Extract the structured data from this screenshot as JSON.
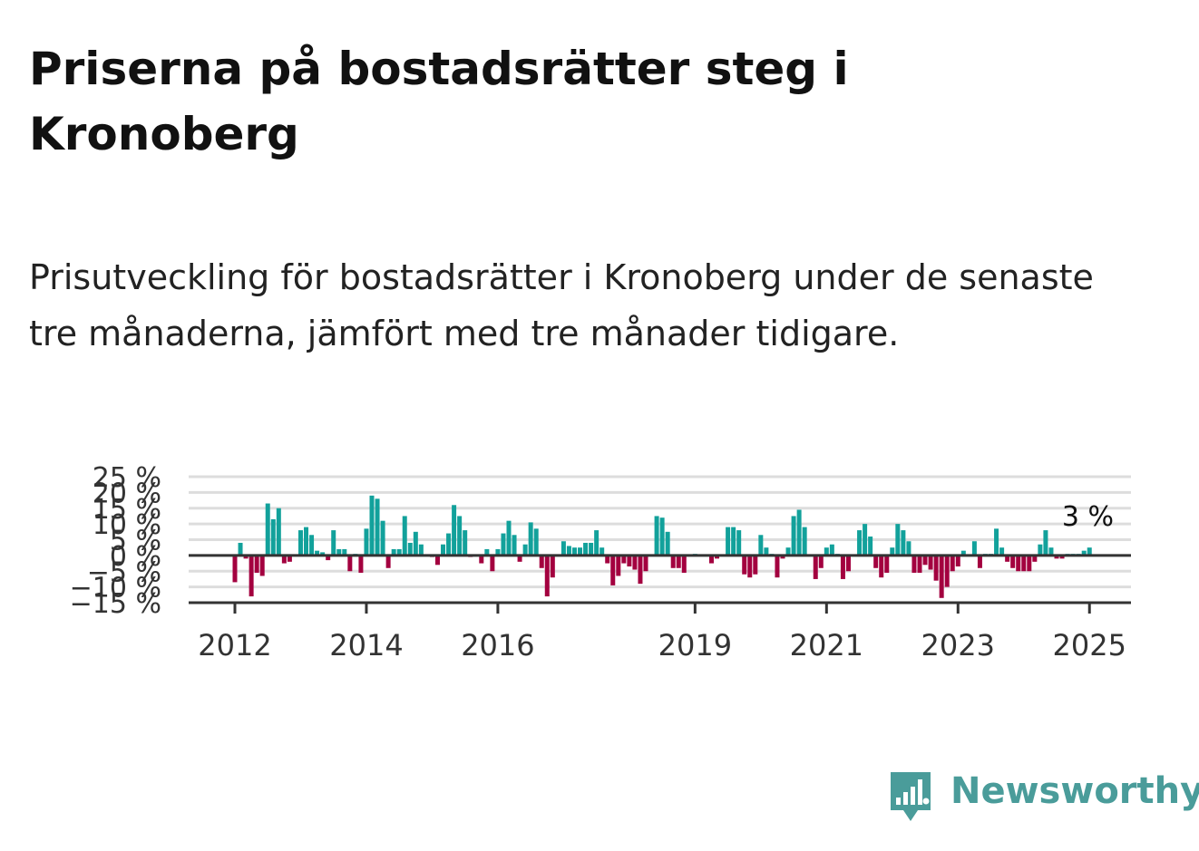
{
  "title": "Priserna på bostadsrätter steg i Kronoberg",
  "subtitle": "Prisutveckling för bostadsrätter i Kronoberg under de senaste tre månaderna, jämfört med tre månader tidigare.",
  "brand": {
    "name": "Newsworthy",
    "color": "#4a9c9a"
  },
  "colors": {
    "positive": "#12a19b",
    "negative": "#a3003f",
    "grid": "#dddddd",
    "axis": "#333333"
  },
  "chart_data": {
    "type": "bar",
    "title": "",
    "xlabel": "",
    "ylabel": "",
    "ylim": [
      -15,
      25
    ],
    "y_ticks": [
      -15,
      -10,
      -5,
      0,
      5,
      10,
      15,
      20,
      25
    ],
    "y_tick_labels": [
      "−15 %",
      "−10 %",
      "−5 %",
      "0 %",
      "5 %",
      "10 %",
      "15 %",
      "20 %",
      "25 %"
    ],
    "x_tick_labels": [
      "2012",
      "2014",
      "2016",
      "2019",
      "2021",
      "2023",
      "2025"
    ],
    "x_tick_dates": [
      "2012-01",
      "2014-01",
      "2016-01",
      "2019-01",
      "2021-01",
      "2023-01",
      "2025-01"
    ],
    "grid": true,
    "last_value_label": "3 %",
    "series": [
      {
        "dates": [
          "2012-01",
          "2012-02",
          "2012-03",
          "2012-04",
          "2012-05",
          "2012-06",
          "2012-07",
          "2012-08",
          "2012-09",
          "2012-10",
          "2012-11",
          "2012-12",
          "2013-01",
          "2013-02",
          "2013-03",
          "2013-04",
          "2013-05",
          "2013-06",
          "2013-07",
          "2013-08",
          "2013-09",
          "2013-10",
          "2013-11",
          "2013-12",
          "2014-01",
          "2014-02",
          "2014-03",
          "2014-04",
          "2014-05",
          "2014-06",
          "2014-07",
          "2014-08",
          "2014-09",
          "2014-10",
          "2014-11",
          "2014-12",
          "2015-01",
          "2015-02",
          "2015-03",
          "2015-04",
          "2015-05",
          "2015-06",
          "2015-07",
          "2015-08",
          "2015-09",
          "2015-10",
          "2015-11",
          "2015-12",
          "2016-01",
          "2016-02",
          "2016-03",
          "2016-04",
          "2016-05",
          "2016-06",
          "2016-07",
          "2016-08",
          "2016-09",
          "2016-10",
          "2016-11",
          "2016-12",
          "2017-01",
          "2017-02",
          "2017-03",
          "2017-04",
          "2017-05",
          "2017-06",
          "2017-07",
          "2017-08",
          "2017-09",
          "2017-10",
          "2017-11",
          "2017-12",
          "2018-01",
          "2018-02",
          "2018-03",
          "2018-04",
          "2018-05",
          "2018-06",
          "2018-07",
          "2018-08",
          "2018-09",
          "2018-10",
          "2018-11",
          "2018-12",
          "2019-01",
          "2019-02",
          "2019-03",
          "2019-04",
          "2019-05",
          "2019-06",
          "2019-07",
          "2019-08",
          "2019-09",
          "2019-10",
          "2019-11",
          "2019-12",
          "2020-01",
          "2020-02",
          "2020-03",
          "2020-04",
          "2020-05",
          "2020-06",
          "2020-07",
          "2020-08",
          "2020-09",
          "2020-10",
          "2020-11",
          "2020-12",
          "2021-01",
          "2021-02",
          "2021-03",
          "2021-04",
          "2021-05",
          "2021-06",
          "2021-07",
          "2021-08",
          "2021-09",
          "2021-10",
          "2021-11",
          "2021-12",
          "2022-01",
          "2022-02",
          "2022-03",
          "2022-04",
          "2022-05",
          "2022-06",
          "2022-07",
          "2022-08",
          "2022-09",
          "2022-10",
          "2022-11",
          "2022-12",
          "2023-01",
          "2023-02",
          "2023-03",
          "2023-04",
          "2023-05",
          "2023-06",
          "2023-07",
          "2023-08",
          "2023-09",
          "2023-10",
          "2023-11",
          "2023-12",
          "2024-01",
          "2024-02",
          "2024-03",
          "2024-04",
          "2024-05",
          "2024-06",
          "2024-07",
          "2024-08",
          "2024-09",
          "2024-10",
          "2024-11",
          "2024-12",
          "2025-01"
        ],
        "values": [
          -8.5,
          4,
          -1,
          -13,
          -5.5,
          -6.5,
          16.5,
          11.5,
          15,
          -2.5,
          -2,
          0,
          8,
          9,
          6.5,
          1.5,
          1,
          -1.5,
          8,
          2,
          2,
          -5,
          0.5,
          -5.5,
          8.5,
          19,
          18,
          11,
          -4,
          2,
          2,
          12.5,
          4,
          7.5,
          3.5,
          0,
          -0.5,
          -3,
          3.5,
          7,
          16,
          12.5,
          8,
          -0.5,
          0,
          -2.5,
          2,
          -5,
          2,
          7,
          11,
          6.5,
          -2,
          3.5,
          10.5,
          8.5,
          -4,
          -13,
          -7,
          0,
          4.5,
          3,
          2.5,
          2.5,
          4,
          4,
          8,
          2.5,
          -2.5,
          -9.5,
          -6.5,
          -2.5,
          -3.5,
          -4.5,
          -9,
          -5,
          0,
          12.5,
          12,
          7.5,
          -4,
          -4,
          -5.5,
          0,
          0.5,
          0,
          0,
          -2.5,
          -1,
          0,
          9,
          9,
          8,
          -6,
          -7,
          -6,
          6.5,
          2.5,
          0.5,
          -7,
          -1,
          2.5,
          12.5,
          14.5,
          9,
          0,
          -7.5,
          -4,
          2.5,
          3.5,
          0.5,
          -7.5,
          -5,
          0,
          8,
          10,
          6,
          -4,
          -7,
          -5.5,
          2.5,
          10,
          8,
          4.5,
          -5.5,
          -5.5,
          -3,
          -4.5,
          -8,
          -13.5,
          -10,
          -5,
          -3.5,
          1.5,
          0,
          4.5,
          -4,
          0.5,
          0.5,
          8.5,
          2.5,
          -2,
          -4,
          -5,
          -5,
          -5,
          -2,
          3.5,
          8,
          2.5,
          -1,
          -1,
          0.5,
          0.5,
          0.5,
          1.5,
          2.5
        ]
      }
    ]
  }
}
